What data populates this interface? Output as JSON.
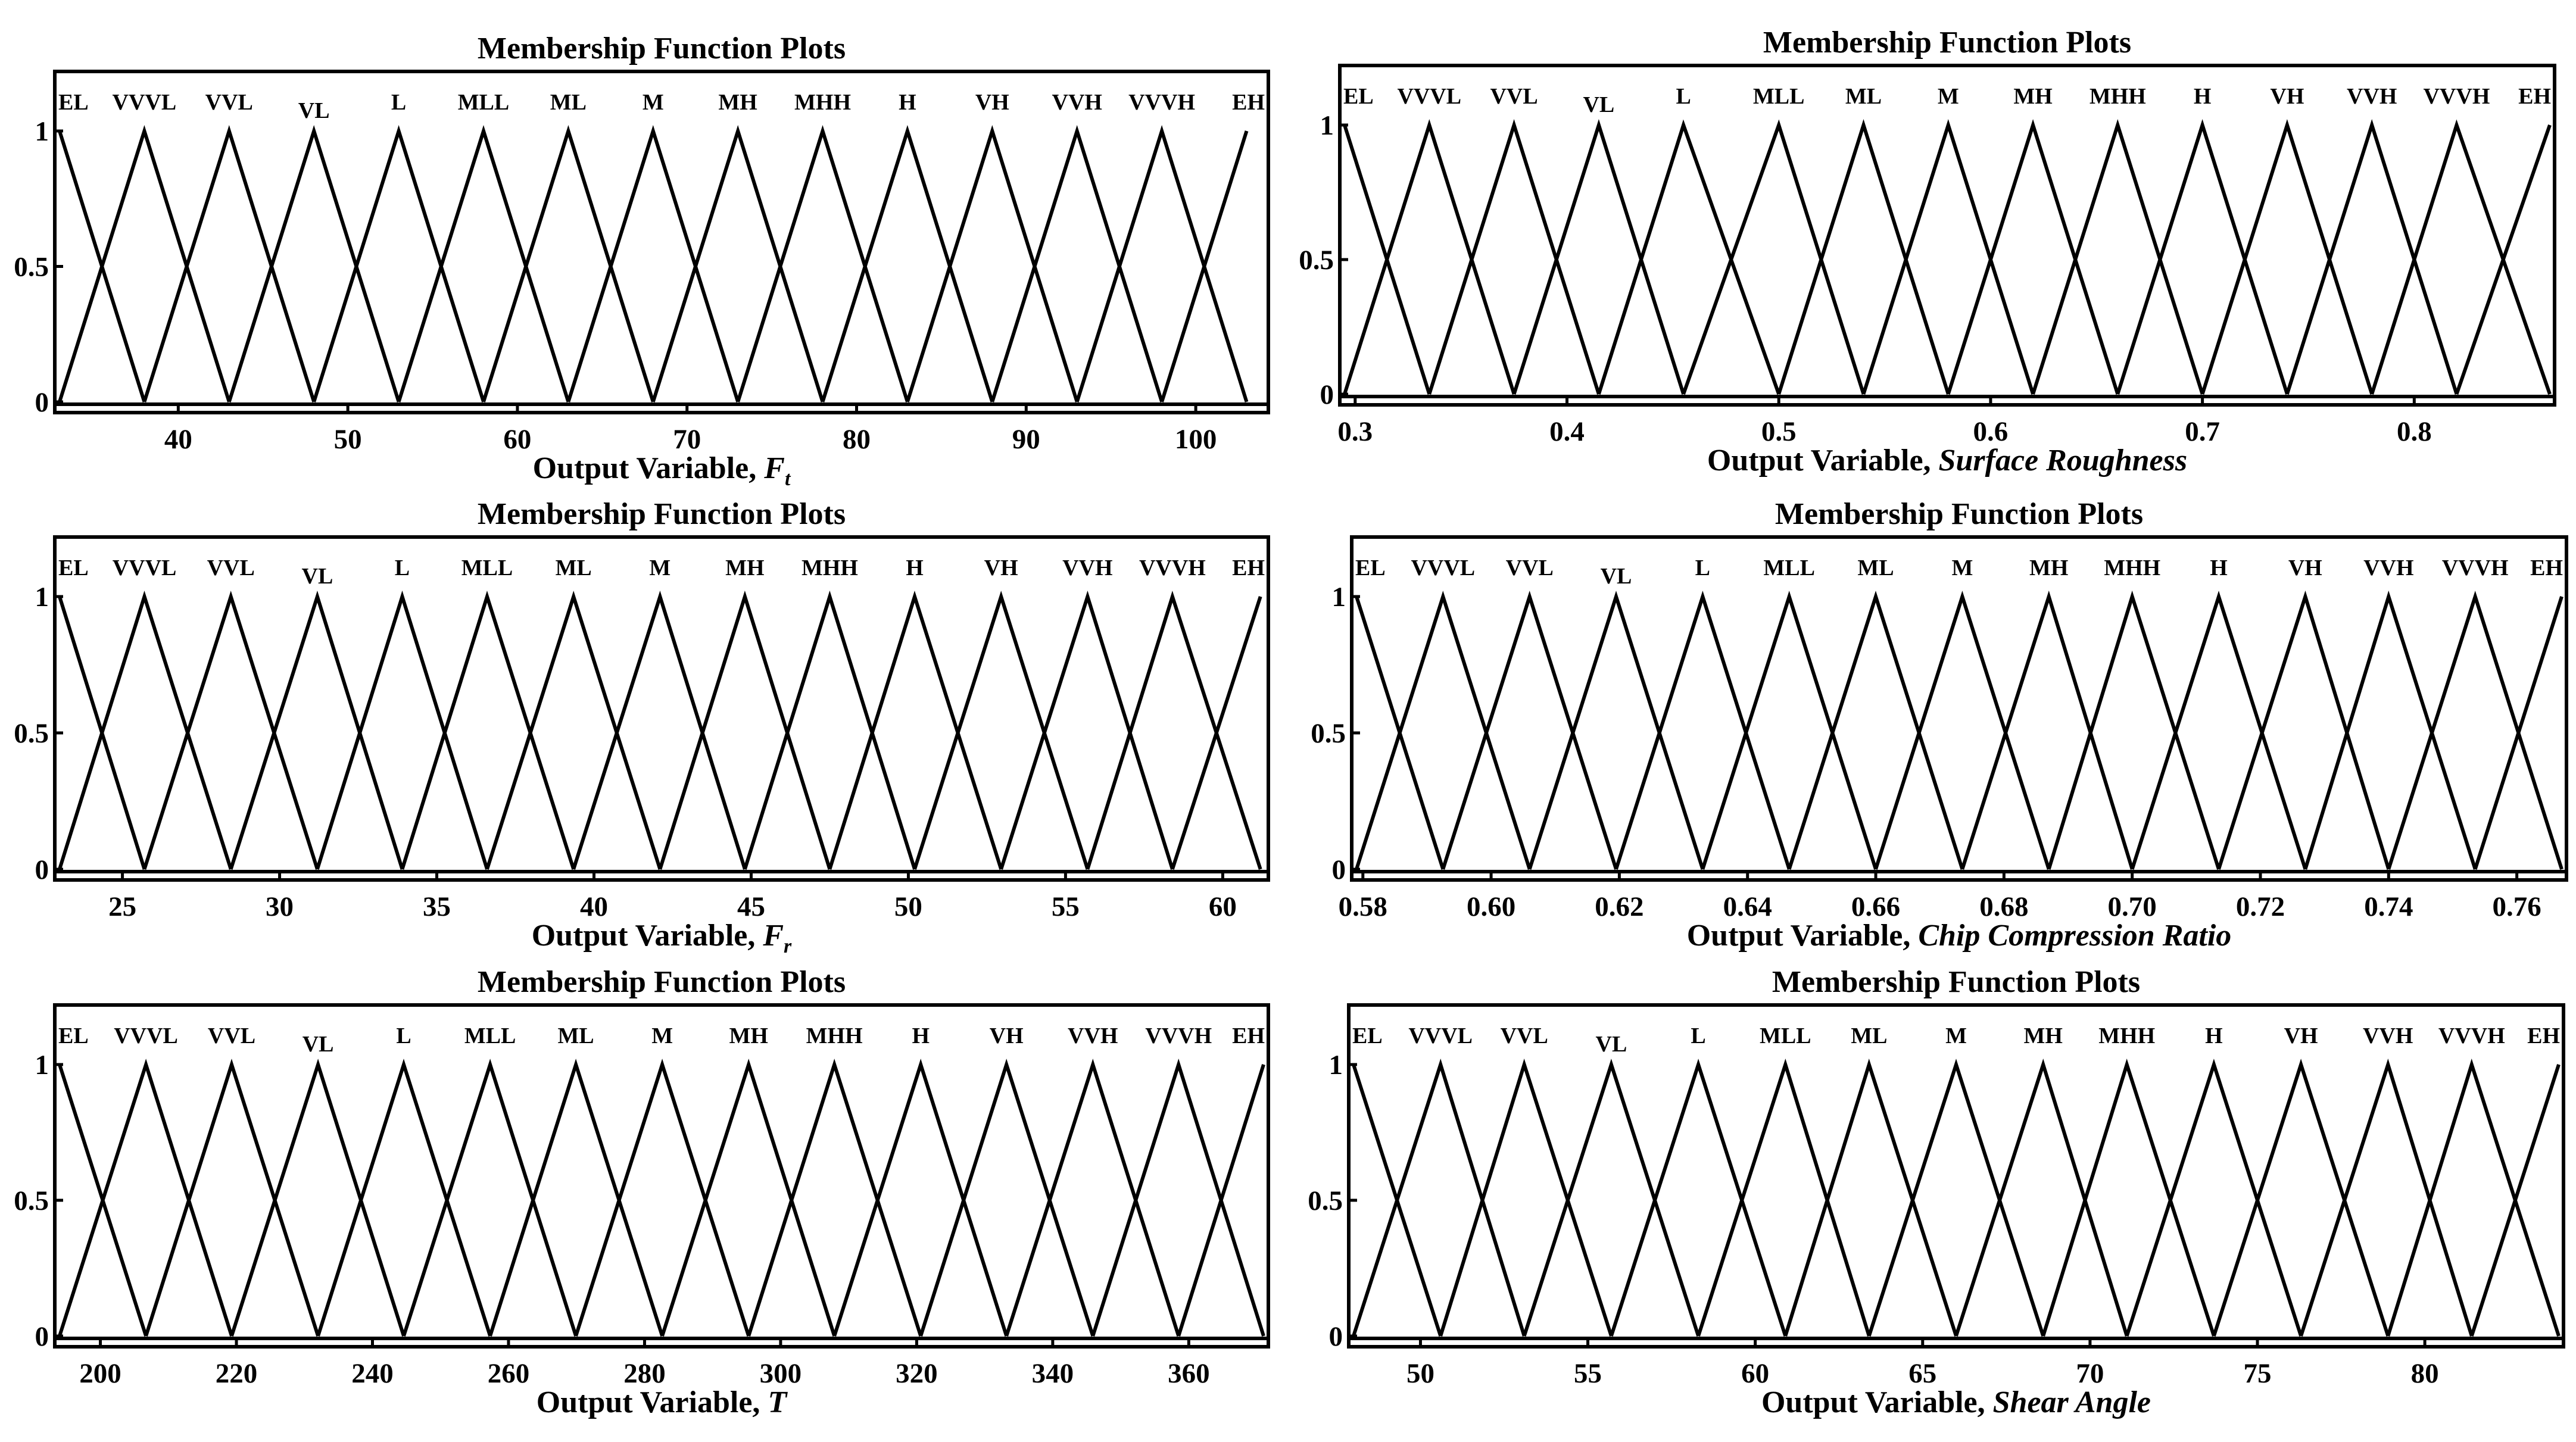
{
  "chart_data": [
    {
      "type": "line",
      "title": "Membership Function Plots",
      "xlabel_prefix": "Output Variable, ",
      "xlabel_var": "F",
      "xlabel_sub": "t",
      "xlim": [
        33,
        104
      ],
      "ylim": [
        0,
        1
      ],
      "x_ticks": [
        40,
        50,
        60,
        70,
        80,
        90,
        100
      ],
      "x_tick_labels": [
        "40",
        "50",
        "60",
        "70",
        "80",
        "90",
        "100"
      ],
      "y_ticks": [
        0,
        0.5,
        1
      ],
      "y_tick_labels": [
        "0",
        "0.5",
        "1"
      ],
      "grid": false,
      "membership_functions": [
        "EL",
        "VVVL",
        "VVL",
        "VL",
        "L",
        "MLL",
        "ML",
        "M",
        "MH",
        "MHH",
        "H",
        "VH",
        "VVH",
        "VVVH",
        "EH"
      ],
      "peaks": [
        33,
        38,
        43,
        48,
        53,
        58,
        63,
        68,
        73,
        78,
        83,
        88,
        93,
        98,
        103
      ]
    },
    {
      "type": "line",
      "title": "Membership Function Plots",
      "xlabel_prefix": "Output Variable, ",
      "xlabel_var": "Surface Roughness",
      "xlabel_sub": "",
      "xlim": [
        0.295,
        0.864
      ],
      "ylim": [
        0,
        1
      ],
      "x_ticks": [
        0.3,
        0.4,
        0.5,
        0.6,
        0.7,
        0.8
      ],
      "x_tick_labels": [
        "0.3",
        "0.4",
        "0.5",
        "0.6",
        "0.7",
        "0.8"
      ],
      "y_ticks": [
        0,
        0.5,
        1
      ],
      "y_tick_labels": [
        "0",
        "0.5",
        "1"
      ],
      "grid": false,
      "membership_functions": [
        "EL",
        "VVVL",
        "VVL",
        "VL",
        "L",
        "MLL",
        "ML",
        "M",
        "MH",
        "MHH",
        "H",
        "VH",
        "VVH",
        "VVVH",
        "EH"
      ],
      "peaks": [
        0.295,
        0.335,
        0.375,
        0.415,
        0.455,
        0.5,
        0.54,
        0.58,
        0.62,
        0.66,
        0.7,
        0.74,
        0.78,
        0.82,
        0.864
      ]
    },
    {
      "type": "line",
      "title": "Membership Function Plots",
      "xlabel_prefix": "Output Variable, ",
      "xlabel_var": "F",
      "xlabel_sub": "r",
      "xlim": [
        23,
        61.3
      ],
      "ylim": [
        0,
        1
      ],
      "x_ticks": [
        25,
        30,
        35,
        40,
        45,
        50,
        55,
        60
      ],
      "x_tick_labels": [
        "25",
        "30",
        "35",
        "40",
        "45",
        "50",
        "55",
        "60"
      ],
      "y_ticks": [
        0,
        0.5,
        1
      ],
      "y_tick_labels": [
        "0",
        "0.5",
        "1"
      ],
      "grid": false,
      "membership_functions": [
        "EL",
        "VVVL",
        "VVL",
        "VL",
        "L",
        "MLL",
        "ML",
        "M",
        "MH",
        "MHH",
        "H",
        "VH",
        "VVH",
        "VVVH",
        "EH"
      ],
      "peaks": [
        23,
        25.7,
        28.45,
        31.2,
        33.9,
        36.6,
        39.35,
        42.1,
        44.8,
        47.5,
        50.2,
        52.95,
        55.7,
        58.4,
        61.2
      ]
    },
    {
      "type": "line",
      "title": "Membership Function Plots",
      "xlabel_prefix": "Output Variable, ",
      "xlabel_var": "Chip Compression Ratio",
      "xlabel_sub": "",
      "xlim": [
        0.579,
        0.767
      ],
      "ylim": [
        0,
        1
      ],
      "x_ticks": [
        0.58,
        0.6,
        0.62,
        0.64,
        0.66,
        0.68,
        0.7,
        0.72,
        0.74,
        0.76
      ],
      "x_tick_labels": [
        "0.58",
        "0.60",
        "0.62",
        "0.64",
        "0.66",
        "0.68",
        "0.70",
        "0.72",
        "0.74",
        "0.76"
      ],
      "y_ticks": [
        0,
        0.5,
        1
      ],
      "y_tick_labels": [
        "0",
        "0.5",
        "1"
      ],
      "grid": false,
      "membership_functions": [
        "EL",
        "VVVL",
        "VVL",
        "VL",
        "L",
        "MLL",
        "ML",
        "M",
        "MH",
        "MHH",
        "H",
        "VH",
        "VVH",
        "VVVH",
        "EH"
      ],
      "peaks": [
        0.579,
        0.5925,
        0.606,
        0.6195,
        0.633,
        0.6465,
        0.66,
        0.6735,
        0.687,
        0.7,
        0.7135,
        0.727,
        0.74,
        0.7535,
        0.767
      ]
    },
    {
      "type": "line",
      "title": "Membership Function Plots",
      "xlabel_prefix": "Output Variable, ",
      "xlabel_var": "T",
      "xlabel_sub": "",
      "xlim": [
        194,
        371
      ],
      "ylim": [
        0,
        1
      ],
      "x_ticks": [
        200,
        220,
        240,
        260,
        280,
        300,
        320,
        340,
        360
      ],
      "x_tick_labels": [
        "200",
        "220",
        "240",
        "260",
        "280",
        "300",
        "320",
        "340",
        "360"
      ],
      "y_ticks": [
        0,
        0.5,
        1
      ],
      "y_tick_labels": [
        "0",
        "0.5",
        "1"
      ],
      "grid": false,
      "membership_functions": [
        "EL",
        "VVVL",
        "VVL",
        "VL",
        "L",
        "MLL",
        "ML",
        "M",
        "MH",
        "MHH",
        "H",
        "VH",
        "VVH",
        "VVVH",
        "EH"
      ],
      "peaks": [
        194,
        206.7,
        219.3,
        232,
        244.6,
        257.3,
        269.9,
        282.6,
        295.3,
        307.9,
        320.6,
        333.2,
        345.9,
        358.5,
        371
      ]
    },
    {
      "type": "line",
      "title": "Membership Function Plots",
      "xlabel_prefix": "Output Variable, ",
      "xlabel_var": "Shear Angle",
      "xlabel_sub": "",
      "xlim": [
        48,
        84
      ],
      "ylim": [
        0,
        1
      ],
      "x_ticks": [
        50,
        55,
        60,
        65,
        70,
        75,
        80
      ],
      "x_tick_labels": [
        "50",
        "55",
        "60",
        "65",
        "70",
        "75",
        "80"
      ],
      "y_ticks": [
        0,
        0.5,
        1
      ],
      "y_tick_labels": [
        "0",
        "0.5",
        "1"
      ],
      "grid": false,
      "membership_functions": [
        "EL",
        "VVVL",
        "VVL",
        "VL",
        "L",
        "MLL",
        "ML",
        "M",
        "MH",
        "MHH",
        "H",
        "VH",
        "VVH",
        "VVVH",
        "EH"
      ],
      "peaks": [
        48,
        50.6,
        53.1,
        55.7,
        58.3,
        60.9,
        63.4,
        66,
        68.6,
        71.1,
        73.7,
        76.3,
        78.9,
        81.4,
        84
      ]
    }
  ]
}
